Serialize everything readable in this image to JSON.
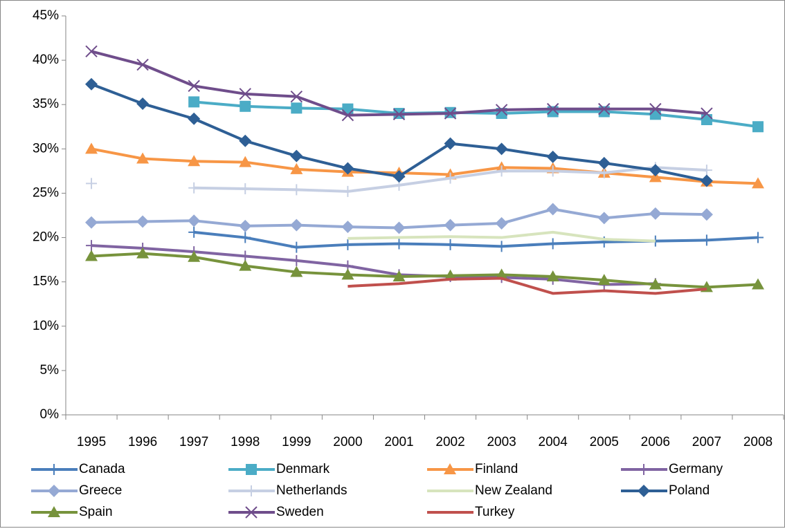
{
  "chart_data": {
    "type": "line",
    "categories": [
      "1995",
      "1996",
      "1997",
      "1998",
      "1999",
      "2000",
      "2001",
      "2002",
      "2003",
      "2004",
      "2005",
      "2006",
      "2007",
      "2008"
    ],
    "ylim": [
      0,
      45
    ],
    "yticks": [
      {
        "value": 0,
        "label": "0%"
      },
      {
        "value": 5,
        "label": "5%"
      },
      {
        "value": 10,
        "label": "10%"
      },
      {
        "value": 15,
        "label": "15%"
      },
      {
        "value": 20,
        "label": "20%"
      },
      {
        "value": 25,
        "label": "25%"
      },
      {
        "value": 30,
        "label": "30%"
      },
      {
        "value": 35,
        "label": "35%"
      },
      {
        "value": 40,
        "label": "40%"
      },
      {
        "value": 45,
        "label": "45%"
      }
    ],
    "grid": false,
    "legend": "bottom",
    "series": [
      {
        "name": "Canada",
        "color": "#4a7ebb",
        "marker": "plus",
        "values": [
          null,
          null,
          20.6,
          20.0,
          18.9,
          19.2,
          19.3,
          19.2,
          19.0,
          19.3,
          19.5,
          19.6,
          19.7,
          20.0
        ]
      },
      {
        "name": "Denmark",
        "color": "#4bacc6",
        "marker": "square",
        "values": [
          null,
          null,
          35.3,
          34.8,
          34.6,
          34.5,
          34.0,
          34.1,
          34.0,
          34.2,
          34.2,
          33.9,
          33.3,
          32.5
        ]
      },
      {
        "name": "Finland",
        "color": "#f79646",
        "marker": "triangle",
        "values": [
          30.0,
          28.9,
          28.6,
          28.5,
          27.7,
          27.4,
          27.3,
          27.1,
          27.9,
          27.8,
          27.3,
          26.8,
          26.3,
          26.1
        ]
      },
      {
        "name": "Germany",
        "color": "#8064a2",
        "marker": "plus",
        "values": [
          19.1,
          18.8,
          18.4,
          17.9,
          17.4,
          16.8,
          15.8,
          15.6,
          15.5,
          15.3,
          14.7,
          14.8,
          null,
          null
        ]
      },
      {
        "name": "Greece",
        "color": "#95a9d4",
        "marker": "diamond",
        "values": [
          21.7,
          21.8,
          21.9,
          21.3,
          21.4,
          21.2,
          21.1,
          21.4,
          21.6,
          23.2,
          22.2,
          22.7,
          22.6,
          null
        ]
      },
      {
        "name": "Netherlands",
        "color": "#c6cfe3",
        "marker": "plus",
        "values": [
          26.1,
          null,
          25.6,
          25.5,
          25.4,
          25.2,
          25.9,
          26.7,
          27.5,
          27.5,
          27.3,
          27.9,
          27.6,
          null
        ]
      },
      {
        "name": "New Zealand",
        "color": "#d7e4bd",
        "marker": "none",
        "values": [
          null,
          null,
          null,
          null,
          null,
          19.9,
          20.0,
          20.1,
          20.0,
          20.6,
          19.8,
          19.6,
          null,
          null
        ]
      },
      {
        "name": "Poland",
        "color": "#2e5f95",
        "marker": "diamond",
        "values": [
          37.3,
          35.1,
          33.4,
          30.9,
          29.2,
          27.8,
          26.9,
          30.6,
          30.0,
          29.1,
          28.4,
          27.6,
          26.4,
          null
        ]
      },
      {
        "name": "Spain",
        "color": "#77933c",
        "marker": "triangle",
        "values": [
          17.9,
          18.2,
          17.8,
          16.8,
          16.1,
          15.8,
          15.6,
          15.7,
          15.8,
          15.6,
          15.2,
          14.7,
          14.4,
          14.7
        ]
      },
      {
        "name": "Sweden",
        "color": "#6f4d8b",
        "marker": "x",
        "values": [
          41.0,
          39.5,
          37.1,
          36.2,
          35.9,
          33.8,
          33.9,
          34.0,
          34.4,
          34.5,
          34.5,
          34.5,
          34.0,
          null
        ]
      },
      {
        "name": "Turkey",
        "color": "#c0504d",
        "marker": "none",
        "values": [
          null,
          null,
          null,
          null,
          null,
          14.5,
          14.8,
          15.3,
          15.4,
          13.7,
          14.0,
          13.7,
          14.2,
          null
        ]
      }
    ]
  }
}
